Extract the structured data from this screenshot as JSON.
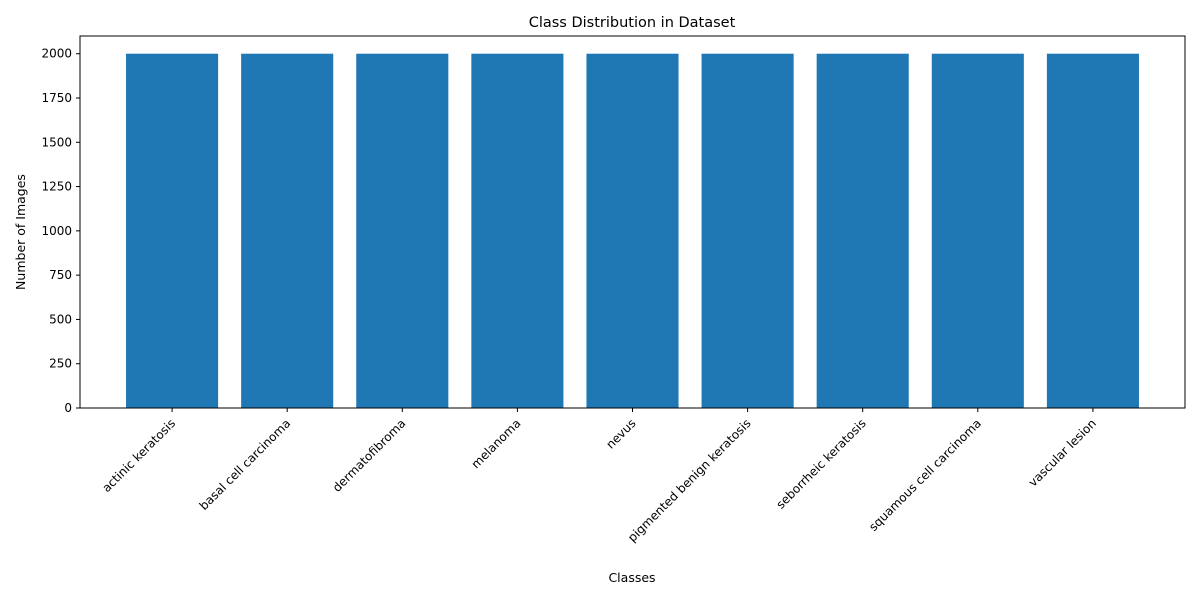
{
  "chart_data": {
    "type": "bar",
    "title": "Class Distribution in Dataset",
    "xlabel": "Classes",
    "ylabel": "Number of Images",
    "categories": [
      "actinic keratosis",
      "basal cell carcinoma",
      "dermatofibroma",
      "melanoma",
      "nevus",
      "pigmented benign keratosis",
      "seborrheic keratosis",
      "squamous cell carcinoma",
      "vascular lesion"
    ],
    "values": [
      2000,
      2000,
      2000,
      2000,
      2000,
      2000,
      2000,
      2000,
      2000
    ],
    "ylim": [
      0,
      2100
    ],
    "yticks": [
      0,
      250,
      500,
      750,
      1000,
      1250,
      1500,
      1750,
      2000
    ],
    "grid": false,
    "bar_color": "#1f77b4"
  }
}
